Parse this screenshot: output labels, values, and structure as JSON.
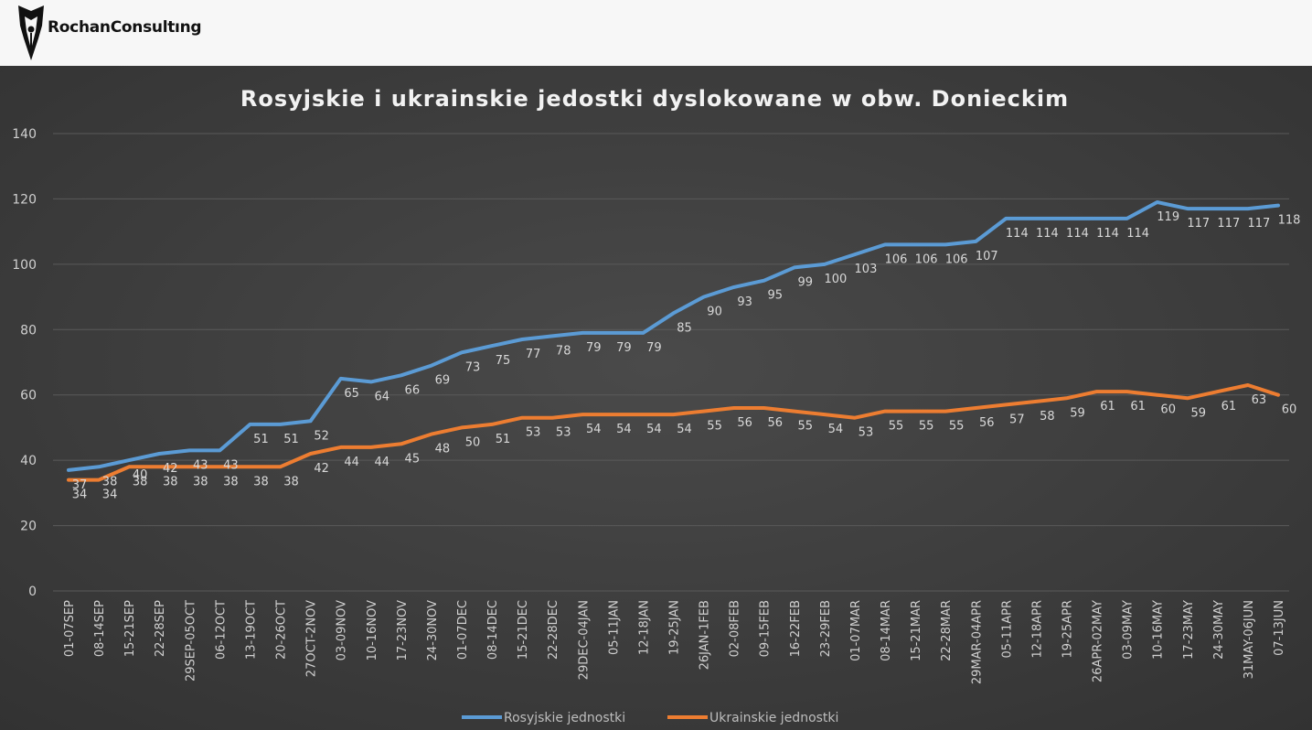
{
  "brand": {
    "name": "RochanConsultıng"
  },
  "chart_data": {
    "type": "line",
    "title": "Rosyjskie i ukrainskie jedostki dyslokowane w obw. Donieckim",
    "xlabel": "",
    "ylabel": "",
    "ylim": [
      0,
      140
    ],
    "yticks": [
      0,
      20,
      40,
      60,
      80,
      100,
      120,
      140
    ],
    "grid": true,
    "legend_position": "bottom",
    "categories": [
      "01-07SEP",
      "08-14SEP",
      "15-21SEP",
      "22-28SEP",
      "29SEP-05OCT",
      "06-12OCT",
      "13-19OCT",
      "20-26OCT",
      "27OCT-2NOV",
      "03-09NOV",
      "10-16NOV",
      "17-23NOV",
      "24-30NOV",
      "01-07DEC",
      "08-14DEC",
      "15-21DEC",
      "22-28DEC",
      "29DEC-04JAN",
      "05-11JAN",
      "12-18JAN",
      "19-25JAN",
      "26JAN-1FEB",
      "02-08FEB",
      "09-15FEB",
      "16-22FEB",
      "23-29FEB",
      "01-07MAR",
      "08-14MAR",
      "15-21MAR",
      "22-28MAR",
      "29MAR-04APR",
      "05-11APR",
      "12-18APR",
      "19-25APR",
      "26APR-02MAY",
      "03-09MAY",
      "10-16MAY",
      "17-23MAY",
      "24-30MAY",
      "31MAY-06JUN",
      "07-13JUN"
    ],
    "series": [
      {
        "name": "Rosyjskie jednostki",
        "color": "#5b9bd5",
        "values": [
          37,
          38,
          40,
          42,
          43,
          43,
          51,
          51,
          52,
          65,
          64,
          66,
          69,
          73,
          75,
          77,
          78,
          79,
          79,
          79,
          85,
          90,
          93,
          95,
          99,
          100,
          103,
          106,
          106,
          106,
          107,
          114,
          114,
          114,
          114,
          114,
          119,
          117,
          117,
          117,
          118
        ]
      },
      {
        "name": "Ukrainskie jednostki",
        "color": "#ed7d31",
        "values": [
          34,
          34,
          38,
          38,
          38,
          38,
          38,
          38,
          42,
          44,
          44,
          45,
          48,
          50,
          51,
          53,
          53,
          54,
          54,
          54,
          54,
          55,
          56,
          56,
          55,
          54,
          53,
          55,
          55,
          55,
          56,
          57,
          58,
          59,
          61,
          61,
          60,
          59,
          61,
          63,
          60
        ]
      }
    ]
  }
}
